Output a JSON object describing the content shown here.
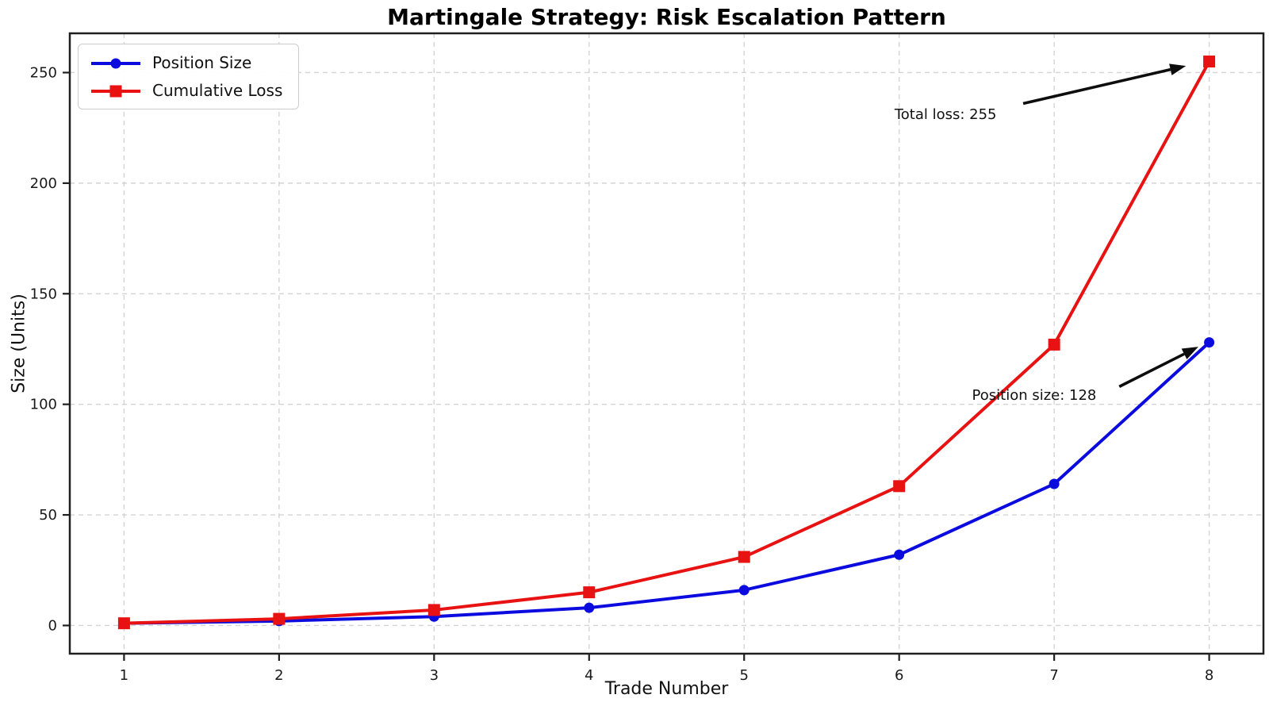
{
  "chart_data": {
    "type": "line",
    "title": "Martingale Strategy: Risk Escalation Pattern",
    "xlabel": "Trade Number",
    "ylabel": "Size (Units)",
    "x": [
      1,
      2,
      3,
      4,
      5,
      6,
      7,
      8
    ],
    "series": [
      {
        "name": "Position Size",
        "marker": "circle",
        "color": "#0b0be0",
        "values": [
          1,
          2,
          4,
          8,
          16,
          32,
          64,
          128
        ]
      },
      {
        "name": "Cumulative Loss",
        "marker": "square",
        "color": "#e81212",
        "values": [
          1,
          3,
          7,
          15,
          31,
          63,
          127,
          255
        ]
      }
    ],
    "xticks": [
      "1",
      "2",
      "3",
      "4",
      "5",
      "6",
      "7",
      "8"
    ],
    "xtick_values": [
      1,
      2,
      3,
      4,
      5,
      6,
      7,
      8
    ],
    "yticks": [
      "0",
      "50",
      "100",
      "150",
      "200",
      "250"
    ],
    "ytick_values": [
      0,
      50,
      100,
      150,
      200,
      250
    ],
    "xlim": [
      0.65,
      8.35
    ],
    "ylim": [
      -12.75,
      267.75
    ],
    "grid": true,
    "legend_position": "upper-left",
    "annotations": [
      {
        "text": "Total loss: 255",
        "text_x": 5.97,
        "text_y": 229,
        "arrow": {
          "x1": 6.8,
          "y1": 236,
          "x2": 7.85,
          "y2": 253
        }
      },
      {
        "text": "Position size: 128",
        "text_x": 6.47,
        "text_y": 102,
        "arrow": {
          "x1": 7.42,
          "y1": 108,
          "x2": 7.93,
          "y2": 126
        }
      }
    ],
    "styles": {
      "grid_color": "#cdcdcd",
      "spine_color": "#1f1f1f",
      "arrow_color": "#0d0d0d",
      "tick_label_color": "#1a1a1a"
    }
  }
}
